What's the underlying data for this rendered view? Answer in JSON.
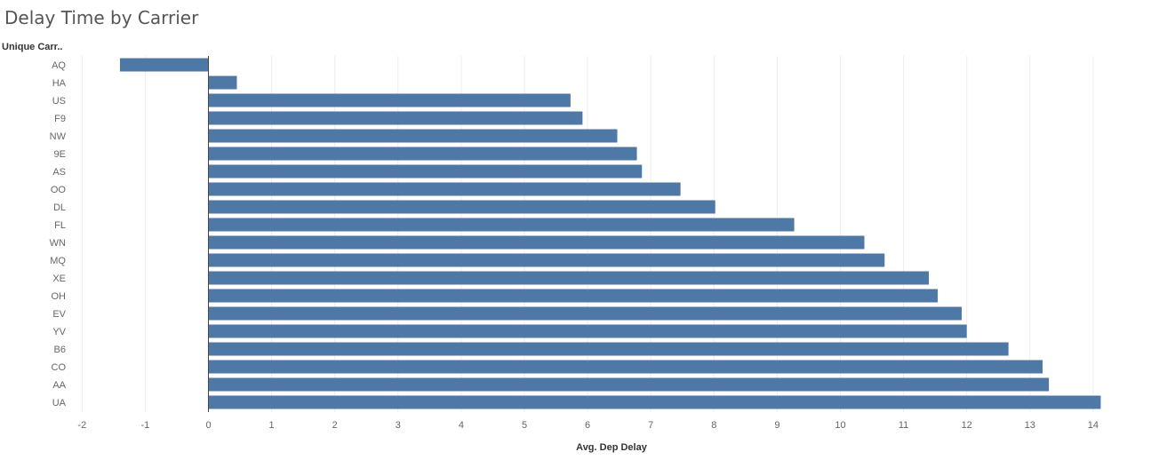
{
  "title": "Delay Time by Carrier",
  "row_header": "Unique Carr..",
  "colors": {
    "bar": "#4e79a7",
    "grid": "#ececec",
    "zero_line": "#444444"
  },
  "chart_data": {
    "type": "bar",
    "orientation": "horizontal",
    "title": "Delay Time by Carrier",
    "xlabel": "Avg. Dep Delay",
    "ylabel": "Unique Carr..",
    "xlim": [
      -2,
      14.5
    ],
    "xticks": [
      -2,
      -1,
      0,
      1,
      2,
      3,
      4,
      5,
      6,
      7,
      8,
      9,
      10,
      11,
      12,
      13,
      14
    ],
    "grid": true,
    "categories": [
      "AQ",
      "HA",
      "US",
      "F9",
      "NW",
      "9E",
      "AS",
      "OO",
      "DL",
      "FL",
      "WN",
      "MQ",
      "XE",
      "OH",
      "EV",
      "YV",
      "B6",
      "CO",
      "AA",
      "UA"
    ],
    "values": [
      -1.4,
      0.45,
      5.73,
      5.92,
      6.47,
      6.78,
      6.86,
      7.47,
      8.02,
      9.27,
      10.38,
      10.7,
      11.4,
      11.54,
      11.92,
      12.0,
      12.66,
      13.2,
      13.3,
      14.12
    ]
  }
}
